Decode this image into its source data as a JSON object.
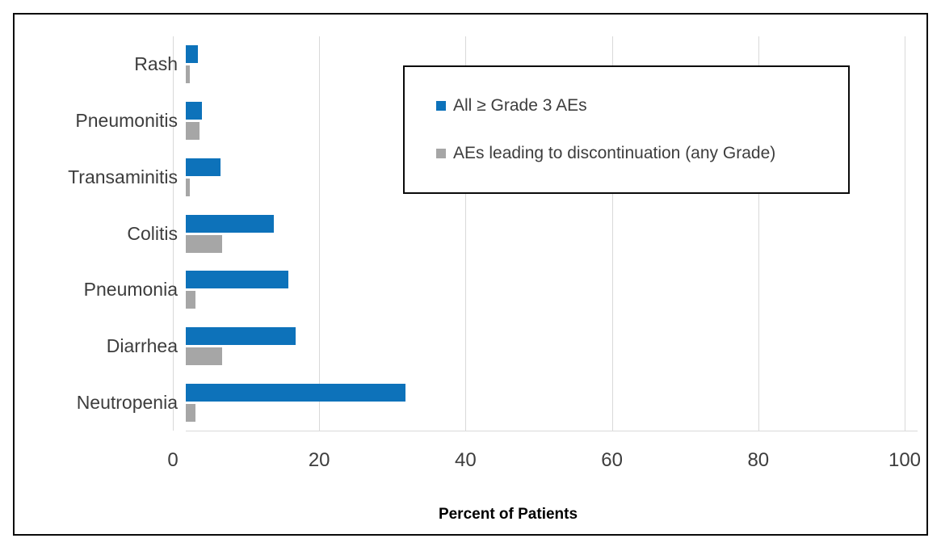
{
  "chart_data": {
    "type": "bar",
    "orientation": "horizontal",
    "title": "",
    "xlabel": "Percent of Patients",
    "ylabel": "",
    "xlim": [
      0,
      100
    ],
    "xticks": [
      0,
      20,
      40,
      60,
      80,
      100
    ],
    "grid": true,
    "legend_position": "top-right-boxed",
    "categories": [
      "Rash",
      "Pneumonitis",
      "Transaminitis",
      "Colitis",
      "Pneumonia",
      "Diarrhea",
      "Neutropenia"
    ],
    "series": [
      {
        "name": "All ≥ Grade 3 AEs",
        "color": "#0d72ba",
        "values": [
          1.7,
          2.2,
          4.8,
          12,
          14,
          15,
          30
        ]
      },
      {
        "name": "AEs leading to discontinuation (any Grade)",
        "color": "#a6a6a6",
        "values": [
          0.5,
          1.9,
          0.5,
          5,
          1.3,
          5,
          1.3
        ]
      }
    ],
    "colors": {
      "gridline": "#d9d9d9",
      "axis_text": "#3d3d3d",
      "frame_border": "#0a0a0a"
    }
  }
}
